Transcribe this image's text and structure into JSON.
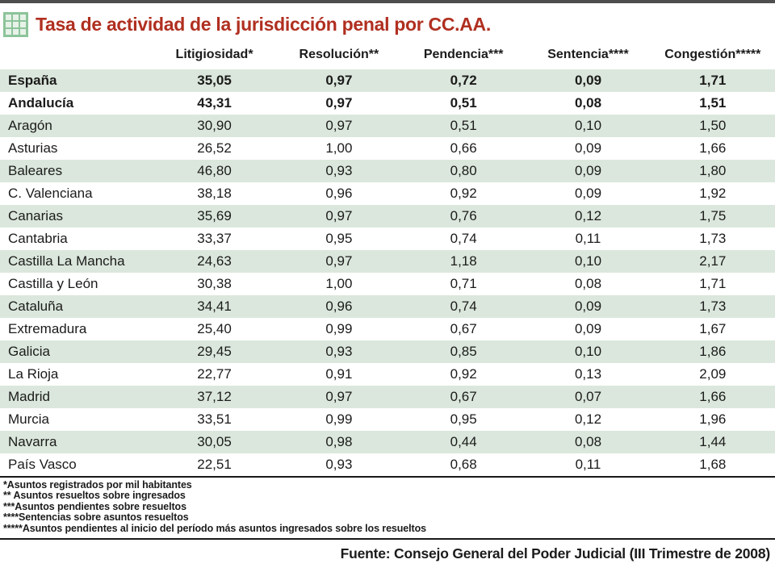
{
  "colors": {
    "top_rule": "#4e4e4e",
    "title_red": "#b02f20",
    "row_stripe_green": "#dbe7dc",
    "icon_green": "#8cc49a",
    "icon_cell_green": "#e7f2e8",
    "rule_black": "#181818"
  },
  "header": {
    "title": "Tasa de actividad de la jurisdicción penal por CC.AA.",
    "icon": "table-grid-icon"
  },
  "table": {
    "columns": [
      "Litigiosidad*",
      "Resolución**",
      "Pendencia***",
      "Sentencia****",
      "Congestión*****"
    ],
    "rows": [
      {
        "label": "España",
        "values": [
          "35,05",
          "0,97",
          "0,72",
          "0,09",
          "1,71"
        ],
        "bold": true
      },
      {
        "label": "Andalucía",
        "values": [
          "43,31",
          "0,97",
          "0,51",
          "0,08",
          "1,51"
        ],
        "bold": true
      },
      {
        "label": "Aragón",
        "values": [
          "30,90",
          "0,97",
          "0,51",
          "0,10",
          "1,50"
        ],
        "bold": false
      },
      {
        "label": "Asturias",
        "values": [
          "26,52",
          "1,00",
          "0,66",
          "0,09",
          "1,66"
        ],
        "bold": false
      },
      {
        "label": "Baleares",
        "values": [
          "46,80",
          "0,93",
          "0,80",
          "0,09",
          "1,80"
        ],
        "bold": false
      },
      {
        "label": "C. Valenciana",
        "values": [
          "38,18",
          "0,96",
          "0,92",
          "0,09",
          "1,92"
        ],
        "bold": false
      },
      {
        "label": "Canarias",
        "values": [
          "35,69",
          "0,97",
          "0,76",
          "0,12",
          "1,75"
        ],
        "bold": false
      },
      {
        "label": "Cantabria",
        "values": [
          "33,37",
          "0,95",
          "0,74",
          "0,11",
          "1,73"
        ],
        "bold": false
      },
      {
        "label": "Castilla La Mancha",
        "values": [
          "24,63",
          "0,97",
          "1,18",
          "0,10",
          "2,17"
        ],
        "bold": false
      },
      {
        "label": "Castilla y León",
        "values": [
          "30,38",
          "1,00",
          "0,71",
          "0,08",
          "1,71"
        ],
        "bold": false
      },
      {
        "label": "Cataluña",
        "values": [
          "34,41",
          "0,96",
          "0,74",
          "0,09",
          "1,73"
        ],
        "bold": false
      },
      {
        "label": "Extremadura",
        "values": [
          "25,40",
          "0,99",
          "0,67",
          "0,09",
          "1,67"
        ],
        "bold": false
      },
      {
        "label": "Galicia",
        "values": [
          "29,45",
          "0,93",
          "0,85",
          "0,10",
          "1,86"
        ],
        "bold": false
      },
      {
        "label": "La Rioja",
        "values": [
          "22,77",
          "0,91",
          "0,92",
          "0,13",
          "2,09"
        ],
        "bold": false
      },
      {
        "label": "Madrid",
        "values": [
          "37,12",
          "0,97",
          "0,67",
          "0,07",
          "1,66"
        ],
        "bold": false
      },
      {
        "label": "Murcia",
        "values": [
          "33,51",
          "0,99",
          "0,95",
          "0,12",
          "1,96"
        ],
        "bold": false
      },
      {
        "label": "Navarra",
        "values": [
          "30,05",
          "0,98",
          "0,44",
          "0,08",
          "1,44"
        ],
        "bold": false
      },
      {
        "label": "País Vasco",
        "values": [
          "22,51",
          "0,93",
          "0,68",
          "0,11",
          "1,68"
        ],
        "bold": false
      }
    ]
  },
  "footnotes": [
    "*Asuntos registrados por mil habitantes",
    "** Asuntos resueltos sobre ingresados",
    "***Asuntos pendientes sobre resueltos",
    "****Sentencias sobre asuntos resueltos",
    "*****Asuntos pendientes al inicio del período más asuntos ingresados sobre los resueltos"
  ],
  "source": {
    "text": "Fuente: Consejo General del Poder Judicial (III Trimestre de 2008)"
  },
  "chart_data": {
    "type": "table",
    "title": "Tasa de actividad de la jurisdicción penal por CC.AA.",
    "columns": [
      "Litigiosidad",
      "Resolución",
      "Pendencia",
      "Sentencia",
      "Congestión"
    ],
    "row_labels": [
      "España",
      "Andalucía",
      "Aragón",
      "Asturias",
      "Baleares",
      "C. Valenciana",
      "Canarias",
      "Cantabria",
      "Castilla La Mancha",
      "Castilla y León",
      "Cataluña",
      "Extremadura",
      "Galicia",
      "La Rioja",
      "Madrid",
      "Murcia",
      "Navarra",
      "País Vasco"
    ],
    "series": [
      {
        "name": "Litigiosidad",
        "values": [
          35.05,
          43.31,
          30.9,
          26.52,
          46.8,
          38.18,
          35.69,
          33.37,
          24.63,
          30.38,
          34.41,
          25.4,
          29.45,
          22.77,
          37.12,
          33.51,
          30.05,
          22.51
        ]
      },
      {
        "name": "Resolución",
        "values": [
          0.97,
          0.97,
          0.97,
          1.0,
          0.93,
          0.96,
          0.97,
          0.95,
          0.97,
          1.0,
          0.96,
          0.99,
          0.93,
          0.91,
          0.97,
          0.99,
          0.98,
          0.93
        ]
      },
      {
        "name": "Pendencia",
        "values": [
          0.72,
          0.51,
          0.51,
          0.66,
          0.8,
          0.92,
          0.76,
          0.74,
          1.18,
          0.71,
          0.74,
          0.67,
          0.85,
          0.92,
          0.67,
          0.95,
          0.44,
          0.68
        ]
      },
      {
        "name": "Sentencia",
        "values": [
          0.09,
          0.08,
          0.1,
          0.09,
          0.09,
          0.09,
          0.12,
          0.11,
          0.1,
          0.08,
          0.09,
          0.09,
          0.1,
          0.13,
          0.07,
          0.12,
          0.08,
          0.11
        ]
      },
      {
        "name": "Congestión",
        "values": [
          1.71,
          1.51,
          1.5,
          1.66,
          1.8,
          1.92,
          1.75,
          1.73,
          2.17,
          1.71,
          1.73,
          1.67,
          1.86,
          2.09,
          1.66,
          1.96,
          1.44,
          1.68
        ]
      }
    ],
    "footnotes": [
      "*Asuntos registrados por mil habitantes",
      "** Asuntos resueltos sobre ingresados",
      "***Asuntos pendientes sobre resueltos",
      "****Sentencias sobre asuntos resueltos",
      "*****Asuntos pendientes al inicio del período más asuntos ingresados sobre los resueltos"
    ],
    "source": "Fuente: Consejo General del Poder Judicial (III Trimestre de 2008)"
  }
}
